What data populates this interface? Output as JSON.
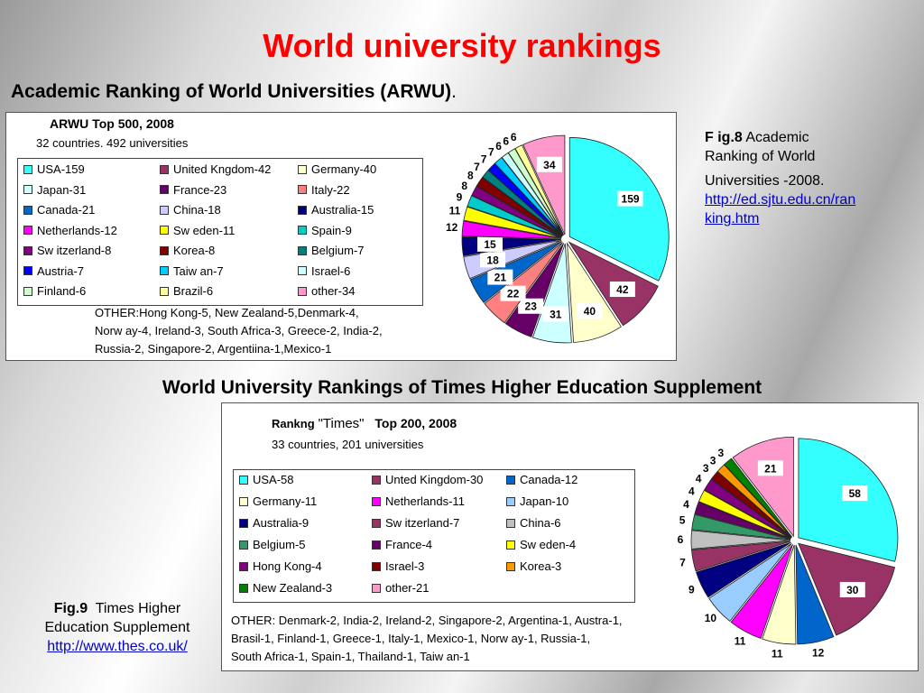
{
  "page": {
    "title": "World university rankings",
    "arwu_heading": "Academic Ranking of World Universities (ARWU)",
    "arwu_heading_suffix": ".",
    "times_heading": "World University Rankings of Times Higher Education Supplement"
  },
  "fig8": {
    "label": "F ig.8",
    "text1": "Academic",
    "text2": "Ranking of World",
    "text3": "Universities -2008.",
    "link1": "http://ed.sjtu.edu.cn/ran",
    "link2": "king.htm"
  },
  "fig9": {
    "label": "Fig.9",
    "text1": "Times Higher",
    "text2": "Education Supplement",
    "link": "http://www.thes.co.uk/"
  },
  "chart_data": [
    {
      "type": "pie",
      "title": "ARWU Top 500, 2008",
      "subtitle": "32 countries. 492 universities",
      "legend_placement": "left",
      "other_note": [
        "OTHER:Hong Kong-5, New  Zealand-5,Denmark-4,",
        "Norw ay-4, Ireland-3, South Africa-3, Greece-2, India-2,",
        "Russia-2, Singapore-2, Argentiina-1,Mexico-1"
      ],
      "slices": [
        {
          "legend": "USA-159",
          "value": 159,
          "color": "#33ffff"
        },
        {
          "legend": "United Kngdom-42",
          "value": 42,
          "color": "#993366"
        },
        {
          "legend": "Germany-40",
          "value": 40,
          "color": "#ffffcc"
        },
        {
          "legend": "Japan-31",
          "value": 31,
          "color": "#ccffff"
        },
        {
          "legend": "France-23",
          "value": 23,
          "color": "#660066"
        },
        {
          "legend": "Italy-22",
          "value": 22,
          "color": "#ff8080"
        },
        {
          "legend": "Canada-21",
          "value": 21,
          "color": "#0066cc"
        },
        {
          "legend": "China-18",
          "value": 18,
          "color": "#ccccff"
        },
        {
          "legend": "Australia-15",
          "value": 15,
          "color": "#000080"
        },
        {
          "legend": "Netherlands-12",
          "value": 12,
          "color": "#ff00ff"
        },
        {
          "legend": "Sw eden-11",
          "value": 11,
          "color": "#ffff00"
        },
        {
          "legend": "Spain-9",
          "value": 9,
          "color": "#00cccc"
        },
        {
          "legend": "Sw itzerland-8",
          "value": 8,
          "color": "#800080"
        },
        {
          "legend": "Korea-8",
          "value": 8,
          "color": "#800000"
        },
        {
          "legend": "Belgium-7",
          "value": 7,
          "color": "#008080"
        },
        {
          "legend": "Austria-7",
          "value": 7,
          "color": "#0000ff"
        },
        {
          "legend": "Taiw an-7",
          "value": 7,
          "color": "#00ccff"
        },
        {
          "legend": "Israel-6",
          "value": 6,
          "color": "#ccffff"
        },
        {
          "legend": "Finland-6",
          "value": 6,
          "color": "#ccffcc"
        },
        {
          "legend": "Brazil-6",
          "value": 6,
          "color": "#ffff99"
        },
        {
          "legend": "other-34",
          "value": 34,
          "color": "#ff99cc"
        }
      ]
    },
    {
      "type": "pie",
      "title_prefix": "Rankng",
      "title_main": "\"Times\"",
      "title_suffix": "Top 200, 2008",
      "subtitle": "33 countries, 201 universities",
      "legend_placement": "left",
      "other_note": [
        "OTHER: Denmark-2, India-2, Ireland-2, Singapore-2, Argentina-1, Austra-1,",
        "Brasil-1, Finland-1, Greece-1,  Italy-1, Mexico-1, Norw ay-1, Russia-1,",
        "South Africa-1, Spain-1, Thailand-1, Taiw an-1"
      ],
      "slices": [
        {
          "legend": "USA-58",
          "value": 58,
          "color": "#33ffff"
        },
        {
          "legend": "Unted Kingdom-30",
          "value": 30,
          "color": "#993366"
        },
        {
          "legend": "Canada-12",
          "value": 12,
          "color": "#0066cc"
        },
        {
          "legend": "Germany-11",
          "value": 11,
          "color": "#ffffcc"
        },
        {
          "legend": "Netherlands-11",
          "value": 11,
          "color": "#ff00ff"
        },
        {
          "legend": "Japan-10",
          "value": 10,
          "color": "#99ccff"
        },
        {
          "legend": "Australia-9",
          "value": 9,
          "color": "#000080"
        },
        {
          "legend": "Sw itzerland-7",
          "value": 7,
          "color": "#993366"
        },
        {
          "legend": "China-6",
          "value": 6,
          "color": "#c0c0c0"
        },
        {
          "legend": "Belgium-5",
          "value": 5,
          "color": "#339966"
        },
        {
          "legend": "France-4",
          "value": 4,
          "color": "#660066"
        },
        {
          "legend": "Sw eden-4",
          "value": 4,
          "color": "#ffff00"
        },
        {
          "legend": "Hong Kong-4",
          "value": 4,
          "color": "#800080"
        },
        {
          "legend": "Israel-3",
          "value": 3,
          "color": "#800000"
        },
        {
          "legend": "Korea-3",
          "value": 3,
          "color": "#ff9900"
        },
        {
          "legend": "New  Zealand-3",
          "value": 3,
          "color": "#008000"
        },
        {
          "legend": "other-21",
          "value": 21,
          "color": "#ff99cc"
        }
      ]
    }
  ]
}
